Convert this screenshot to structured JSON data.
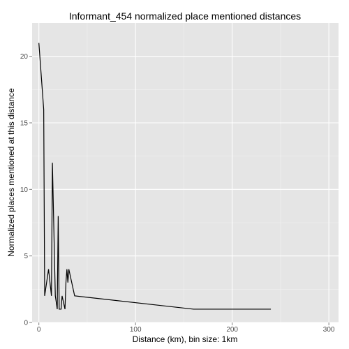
{
  "chart_data": {
    "type": "line",
    "title": "Informant_454 normalized place mentioned distances",
    "xlabel": "Distance (km), bin size: 1km",
    "ylabel": "Normalized places mentioned at this distance",
    "xlim": [
      -7,
      310
    ],
    "ylim": [
      0,
      22.5
    ],
    "x_ticks": [
      0,
      100,
      200,
      300
    ],
    "y_ticks": [
      0,
      5,
      10,
      15,
      20
    ],
    "grid": true,
    "background_color": "#e5e5e5",
    "grid_color": "#ffffff",
    "line_color": "#000000",
    "series": [
      {
        "x": [
          0,
          5,
          6,
          8,
          10,
          13,
          14,
          17,
          19,
          20,
          21,
          23,
          24,
          27,
          28,
          29,
          30,
          31,
          37,
          160,
          240
        ],
        "y": [
          21,
          16,
          2,
          3,
          4,
          2,
          12,
          2,
          1,
          8,
          1,
          1,
          2,
          1,
          3,
          4,
          3,
          4,
          2,
          1,
          1
        ]
      }
    ]
  }
}
